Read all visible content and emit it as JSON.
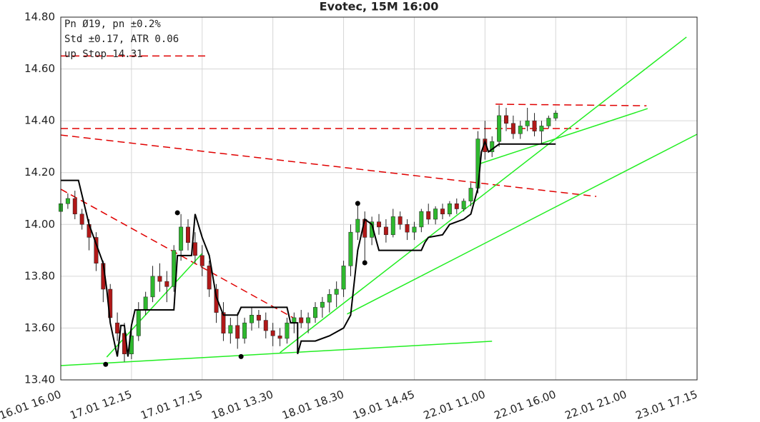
{
  "chart_data": {
    "type": "candlestick",
    "title": "Evotec, 15M 16:00",
    "annotations": [
      "Pn  Ø19, pn ±0.2%",
      "Std ±0.17, ATR 0.06",
      "up Stop 14.31"
    ],
    "xlim": [
      0,
      180
    ],
    "ylim": [
      13.4,
      14.8
    ],
    "grid": true,
    "xticks": [
      {
        "value": 0,
        "label": "16.01 16.00"
      },
      {
        "value": 20,
        "label": "17.01 12.15"
      },
      {
        "value": 40,
        "label": "17.01 17.15"
      },
      {
        "value": 60,
        "label": "18.01 13.30"
      },
      {
        "value": 80,
        "label": "18.01 18.30"
      },
      {
        "value": 100,
        "label": "19.01 14.45"
      },
      {
        "value": 120,
        "label": "22.01 11.00"
      },
      {
        "value": 140,
        "label": "22.01 16.00"
      },
      {
        "value": 160,
        "label": "22.01 21.00"
      },
      {
        "value": 180,
        "label": "23.01 17.15"
      }
    ],
    "yticks": [
      {
        "value": 13.4,
        "label": "13.40"
      },
      {
        "value": 13.6,
        "label": "13.60"
      },
      {
        "value": 13.8,
        "label": "13.80"
      },
      {
        "value": 14.0,
        "label": "14.00"
      },
      {
        "value": 14.2,
        "label": "14.20"
      },
      {
        "value": 14.4,
        "label": "14.40"
      },
      {
        "value": 14.6,
        "label": "14.60"
      },
      {
        "value": 14.8,
        "label": "14.80"
      }
    ],
    "up_color": "#2eb82e",
    "down_color": "#b01818",
    "x": [
      0,
      2,
      4,
      6,
      8,
      10,
      12,
      14,
      16,
      18,
      20,
      22,
      24,
      26,
      28,
      30,
      32,
      34,
      36,
      38,
      40,
      42,
      44,
      46,
      48,
      50,
      52,
      54,
      56,
      58,
      60,
      62,
      64,
      66,
      68,
      70,
      72,
      74,
      76,
      78,
      80,
      82,
      84,
      86,
      88,
      90,
      92,
      94,
      96,
      98,
      100,
      102,
      104,
      106,
      108,
      110,
      112,
      114,
      116,
      118,
      120,
      122,
      124,
      126,
      128,
      130,
      132,
      134,
      136,
      138,
      140
    ],
    "open": [
      14.05,
      14.08,
      14.1,
      14.04,
      14.0,
      13.95,
      13.85,
      13.75,
      13.62,
      13.58,
      13.5,
      13.57,
      13.67,
      13.72,
      13.8,
      13.78,
      13.76,
      13.9,
      13.99,
      13.93,
      13.88,
      13.84,
      13.75,
      13.66,
      13.58,
      13.61,
      13.56,
      13.62,
      13.65,
      13.63,
      13.59,
      13.57,
      13.56,
      13.62,
      13.64,
      13.62,
      13.64,
      13.68,
      13.7,
      13.73,
      13.75,
      13.84,
      13.97,
      14.02,
      13.95,
      14.01,
      13.99,
      13.96,
      14.03,
      14.0,
      13.97,
      13.99,
      14.05,
      14.02,
      14.06,
      14.04,
      14.08,
      14.06,
      14.09,
      14.14,
      14.33,
      14.28,
      14.32,
      14.42,
      14.39,
      14.35,
      14.38,
      14.4,
      14.36,
      14.38,
      14.41
    ],
    "high": [
      14.1,
      14.12,
      14.13,
      14.06,
      14.02,
      13.97,
      13.86,
      13.77,
      13.66,
      13.62,
      13.6,
      13.7,
      13.74,
      13.84,
      13.85,
      13.82,
      13.92,
      14.04,
      14.02,
      13.97,
      13.92,
      13.86,
      13.77,
      13.7,
      13.64,
      13.66,
      13.64,
      13.68,
      13.67,
      13.66,
      13.62,
      13.6,
      13.64,
      13.66,
      13.67,
      13.66,
      13.7,
      13.72,
      13.75,
      13.78,
      13.86,
      14.0,
      14.08,
      14.05,
      14.03,
      14.04,
      14.02,
      14.06,
      14.05,
      14.02,
      14.01,
      14.06,
      14.08,
      14.07,
      14.08,
      14.09,
      14.1,
      14.1,
      14.16,
      14.36,
      14.4,
      14.34,
      14.46,
      14.45,
      14.42,
      14.4,
      14.45,
      14.43,
      14.4,
      14.42,
      14.44
    ],
    "low": [
      14.03,
      14.06,
      14.02,
      13.98,
      13.9,
      13.82,
      13.7,
      13.62,
      13.55,
      13.47,
      13.48,
      13.55,
      13.65,
      13.7,
      13.74,
      13.7,
      13.74,
      13.86,
      13.9,
      13.85,
      13.8,
      13.72,
      13.62,
      13.55,
      13.54,
      13.52,
      13.54,
      13.59,
      13.6,
      13.56,
      13.53,
      13.53,
      13.54,
      13.58,
      13.6,
      13.58,
      13.62,
      13.64,
      13.66,
      13.68,
      13.72,
      13.8,
      13.94,
      13.86,
      13.92,
      13.96,
      13.93,
      13.95,
      13.98,
      13.94,
      13.94,
      13.97,
      14.0,
      14.0,
      14.02,
      14.03,
      14.04,
      14.05,
      14.07,
      14.12,
      14.25,
      14.26,
      14.3,
      14.36,
      14.33,
      14.33,
      14.36,
      14.34,
      14.31,
      14.37,
      14.4
    ],
    "close": [
      14.08,
      14.1,
      14.04,
      14.0,
      13.95,
      13.85,
      13.75,
      13.64,
      13.58,
      13.5,
      13.57,
      13.67,
      13.72,
      13.8,
      13.78,
      13.76,
      13.9,
      13.99,
      13.93,
      13.88,
      13.84,
      13.75,
      13.66,
      13.58,
      13.61,
      13.56,
      13.62,
      13.65,
      13.63,
      13.59,
      13.57,
      13.56,
      13.62,
      13.64,
      13.62,
      13.64,
      13.68,
      13.7,
      13.73,
      13.75,
      13.84,
      13.97,
      14.02,
      13.95,
      14.01,
      13.99,
      13.96,
      14.03,
      14.0,
      13.97,
      13.99,
      14.05,
      14.02,
      14.06,
      14.04,
      14.08,
      14.06,
      14.09,
      14.14,
      14.33,
      14.28,
      14.32,
      14.42,
      14.39,
      14.35,
      14.38,
      14.4,
      14.36,
      14.38,
      14.41,
      14.43
    ],
    "stop_line": {
      "color": "#000000",
      "x": [
        0,
        5,
        8,
        12,
        13,
        14,
        16,
        17,
        18,
        19,
        20,
        21,
        32,
        33,
        37,
        38,
        40,
        42,
        43,
        44,
        46,
        50,
        51,
        64,
        65,
        67,
        67,
        68,
        72,
        76,
        80,
        82,
        84,
        86,
        88,
        89,
        90,
        102,
        103,
        104,
        108,
        110,
        114,
        116,
        118,
        119,
        120,
        121,
        124,
        140
      ],
      "values": [
        14.17,
        14.17,
        14.0,
        13.85,
        13.75,
        13.62,
        13.49,
        13.61,
        13.61,
        13.49,
        13.61,
        13.67,
        13.67,
        13.88,
        13.88,
        14.04,
        13.95,
        13.88,
        13.8,
        13.72,
        13.65,
        13.65,
        13.68,
        13.68,
        13.62,
        13.62,
        13.5,
        13.55,
        13.55,
        13.57,
        13.6,
        13.65,
        13.9,
        14.02,
        14.0,
        13.95,
        13.9,
        13.9,
        13.93,
        13.95,
        13.96,
        14.0,
        14.02,
        14.04,
        14.14,
        14.28,
        14.32,
        14.28,
        14.31,
        14.31
      ]
    },
    "lines": [
      {
        "color": "#e00000",
        "dash": true,
        "x": [
          0,
          41
        ],
        "values": [
          14.65,
          14.65
        ]
      },
      {
        "color": "#e00000",
        "dash": true,
        "x": [
          0,
          146.5
        ],
        "values": [
          14.37,
          14.37
        ]
      },
      {
        "color": "#e00000",
        "dash": true,
        "x": [
          0,
          151.5
        ],
        "values": [
          14.345,
          14.108
        ]
      },
      {
        "color": "#e00000",
        "dash": true,
        "x": [
          0,
          65.7
        ],
        "values": [
          14.136,
          13.64
        ]
      },
      {
        "color": "#e00000",
        "dash": true,
        "x": [
          123,
          165.7
        ],
        "values": [
          14.464,
          14.458
        ]
      },
      {
        "color": "#22ee22",
        "dash": false,
        "x": [
          0,
          122
        ],
        "values": [
          13.455,
          13.549
        ]
      },
      {
        "color": "#22ee22",
        "dash": false,
        "x": [
          13,
          40
        ],
        "values": [
          13.488,
          13.888
        ]
      },
      {
        "color": "#22ee22",
        "dash": false,
        "x": [
          62,
          177
        ],
        "values": [
          13.505,
          14.723
        ]
      },
      {
        "color": "#22ee22",
        "dash": false,
        "x": [
          81,
          180
        ],
        "values": [
          13.654,
          14.348
        ]
      },
      {
        "color": "#22ee22",
        "dash": false,
        "x": [
          118,
          166
        ],
        "values": [
          14.232,
          14.447
        ]
      }
    ],
    "points": {
      "color": "#000000",
      "x": [
        12.7,
        33,
        51,
        84,
        86
      ],
      "values": [
        13.46,
        14.045,
        13.49,
        14.081,
        13.852
      ]
    }
  }
}
